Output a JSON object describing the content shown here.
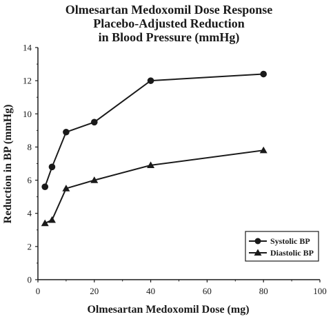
{
  "chart_data": {
    "type": "line",
    "title": [
      "Olmesartan Medoxomil Dose Response",
      "Placebo-Adjusted Reduction",
      "in Blood Pressure (mmHg)"
    ],
    "xlabel": "Olmesartan Medoxomil Dose (mg)",
    "ylabel": "Reduction in BP (mmHg)",
    "xlim": [
      0,
      100
    ],
    "ylim": [
      0,
      14
    ],
    "x_ticks": [
      0,
      20,
      40,
      60,
      80,
      100
    ],
    "y_ticks": [
      0,
      2,
      4,
      6,
      8,
      10,
      12,
      14
    ],
    "grid": false,
    "legend_position": "bottom-right",
    "series": [
      {
        "name": "Systolic BP",
        "marker": "circle",
        "color": "#1a1a1a",
        "x": [
          2.5,
          5,
          10,
          20,
          40,
          80
        ],
        "y": [
          5.6,
          6.8,
          8.9,
          9.5,
          12.0,
          12.4
        ]
      },
      {
        "name": "Diastolic BP",
        "marker": "triangle",
        "color": "#1a1a1a",
        "x": [
          2.5,
          5,
          10,
          20,
          40,
          80
        ],
        "y": [
          3.4,
          3.6,
          5.5,
          6.0,
          6.9,
          7.8
        ]
      }
    ]
  }
}
